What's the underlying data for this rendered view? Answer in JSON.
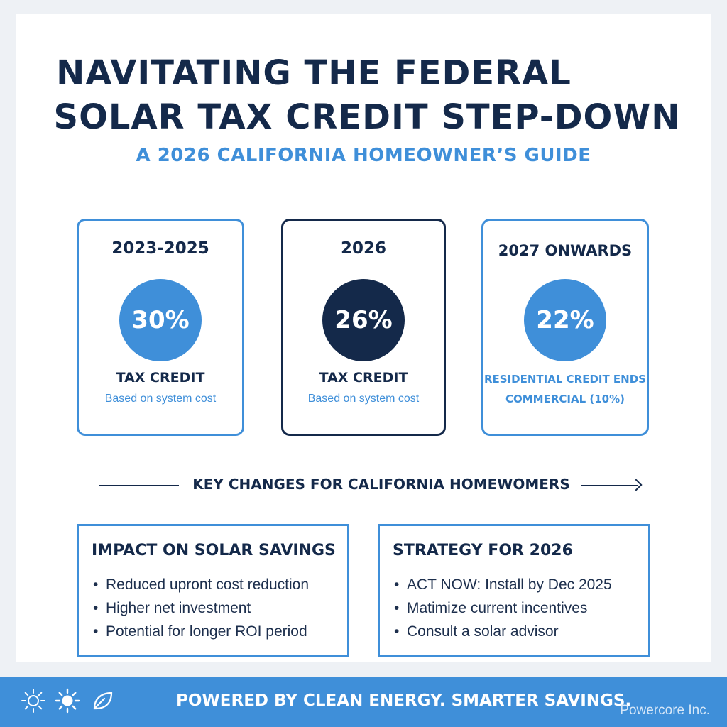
{
  "header": {
    "title_line1": "NAVITATING THE FEDERAL",
    "title_line2": "SOLAR TAX CREDIT STEP-DOWN",
    "subtitle": "A 2026 CALIFORNIA HOMEOWNER’S GUIDE"
  },
  "periods": [
    {
      "year": "2023-2025",
      "percent": "30%",
      "label": "TAX CREDIT",
      "note": "Based on system cost"
    },
    {
      "year": "2026",
      "percent": "26%",
      "label": "TAX CREDIT",
      "note": "Based on system cost"
    },
    {
      "year": "2027 ONWARDS",
      "percent": "22%",
      "line1": "RESIDENTIAL CREDIT ENDS",
      "line2": "COMMERCIAL (10%)"
    }
  ],
  "key_changes": "KEY CHANGES FOR CALIFORNIA HOMEWOMERS",
  "impact": {
    "title": "IMPACT ON SOLAR SAVINGS",
    "items": [
      "Reduced upront cost reduction",
      "Higher net investment",
      "Potential for longer ROI period"
    ]
  },
  "strategy": {
    "title": "STRATEGY FOR 2026",
    "items": [
      "ACT NOW: Install by Dec 2025",
      "Matimize current incentives",
      "Consult a solar advisor"
    ]
  },
  "footer": {
    "tagline": "POWERED BY CLEAN ENERGY. SMARTER SAVINGS.",
    "brand": "Powercore Inc.",
    "icons": [
      "sun-outline-icon",
      "sun-filled-icon",
      "leaf-icon"
    ]
  },
  "colors": {
    "navy": "#14294a",
    "blue": "#3f8fd9",
    "background": "#ffffff"
  }
}
